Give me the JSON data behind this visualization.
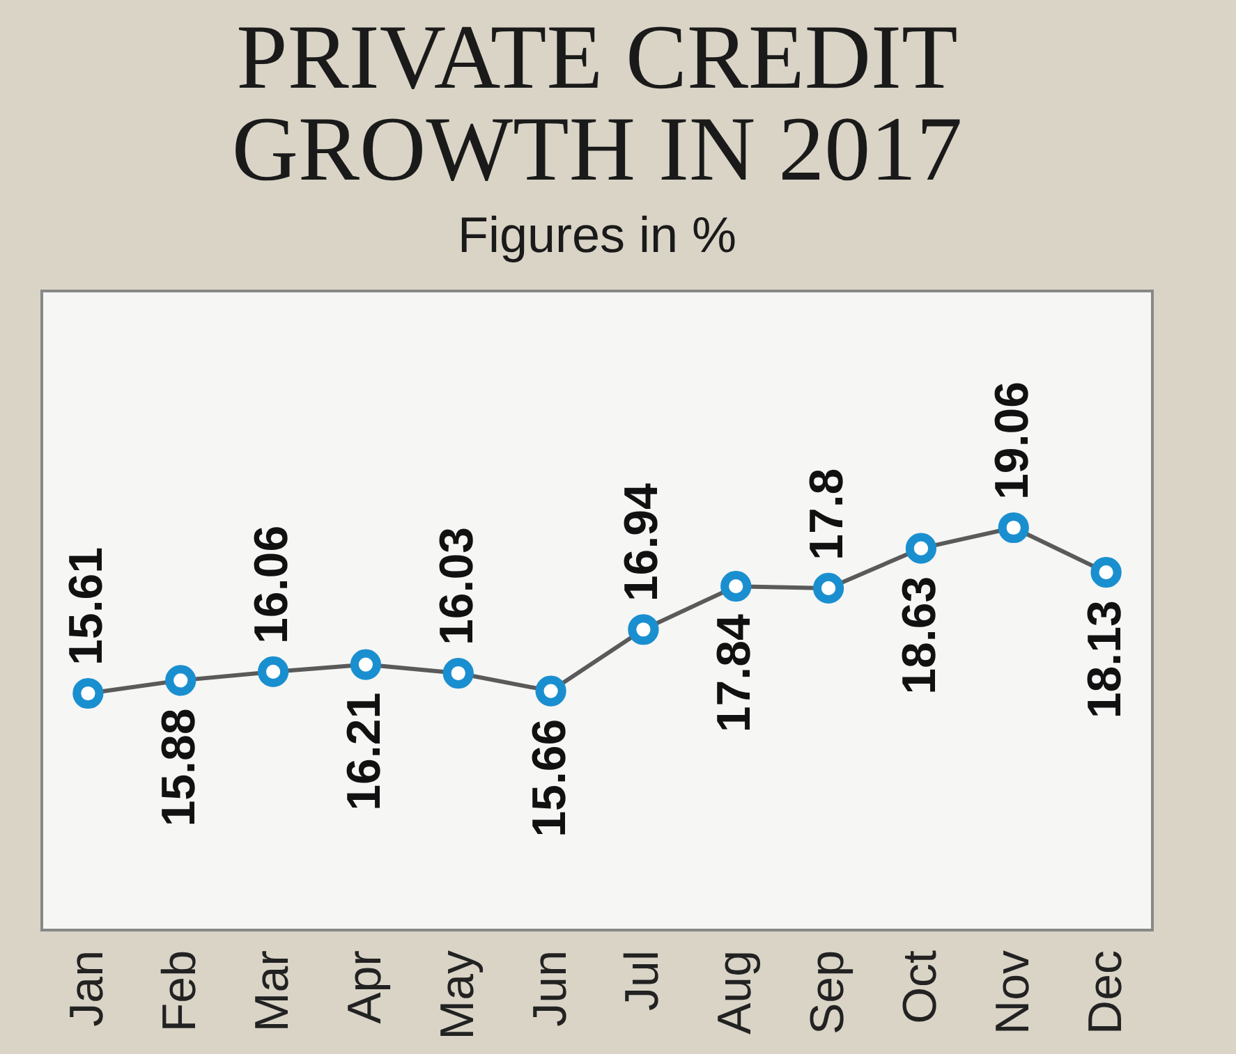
{
  "chart_data": {
    "type": "line",
    "title": "PRIVATE CREDIT\nGROWTH IN 2017",
    "subtitle": "Figures in %",
    "categories": [
      "Jan",
      "Feb",
      "Mar",
      "Apr",
      "May",
      "Jun",
      "Jul",
      "Aug",
      "Sep",
      "Oct",
      "Nov",
      "Dec"
    ],
    "values": [
      15.61,
      15.88,
      16.06,
      16.21,
      16.03,
      15.66,
      16.94,
      17.84,
      17.8,
      18.63,
      19.06,
      18.13
    ],
    "color": "#1a8fd0",
    "marker": "circle",
    "data_labels": true,
    "grid": false
  }
}
